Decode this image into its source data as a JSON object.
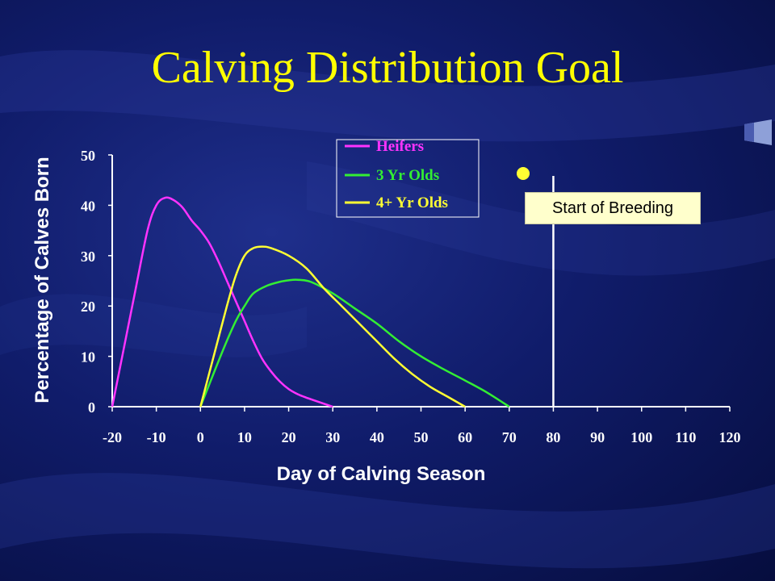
{
  "slide": {
    "title": "Calving Distribution Goal"
  },
  "chart_data": {
    "type": "line",
    "xlabel": "Day of Calving Season",
    "ylabel": "Percentage of Calves Born",
    "xlim": [
      -20,
      120
    ],
    "ylim": [
      0,
      50
    ],
    "x_ticks": [
      "-20",
      "-10",
      "0",
      "10",
      "20",
      "30",
      "40",
      "50",
      "60",
      "70",
      "80",
      "90",
      "100",
      "110",
      "120"
    ],
    "y_ticks": [
      "0",
      "10",
      "20",
      "30",
      "40",
      "50"
    ],
    "grid": false,
    "legend_position": "top-center",
    "series": [
      {
        "name": "Heifers",
        "color": "#ff33ff",
        "x": [
          -20,
          -15,
          -12,
          -10,
          -8,
          -6,
          -4,
          -2,
          0,
          2,
          4,
          6,
          8,
          10,
          12,
          14,
          16,
          18,
          20,
          22,
          24,
          26,
          28,
          30
        ],
        "y": [
          0,
          22,
          35,
          40,
          41.5,
          41,
          39.5,
          37,
          35,
          32.5,
          29,
          25,
          21,
          17,
          13,
          9.5,
          7,
          5,
          3.5,
          2.5,
          1.8,
          1.2,
          0.6,
          0
        ]
      },
      {
        "name": "3 Yr Olds",
        "color": "#33ee33",
        "x": [
          0,
          5,
          8,
          10,
          12,
          15,
          18,
          20,
          22,
          25,
          30,
          35,
          40,
          45,
          50,
          55,
          60,
          65,
          70
        ],
        "y": [
          0,
          11,
          17,
          20,
          22.5,
          24,
          24.8,
          25.1,
          25.2,
          24.8,
          22.5,
          19.5,
          16.5,
          13,
          10,
          7.5,
          5.2,
          2.8,
          0
        ]
      },
      {
        "name": "4+ Yr Olds",
        "color": "#ffff33",
        "x": [
          0,
          3,
          6,
          8,
          10,
          12,
          14,
          16,
          20,
          24,
          28,
          32,
          36,
          40,
          44,
          48,
          52,
          56,
          60
        ],
        "y": [
          0,
          10,
          20,
          26,
          30,
          31.5,
          31.8,
          31.5,
          30,
          27.5,
          23.5,
          20,
          16.5,
          13,
          9.5,
          6.5,
          4,
          2,
          0
        ]
      }
    ],
    "annotations": [
      {
        "text": "Start of Breeding",
        "x": 80,
        "color": "#ffffcc"
      }
    ]
  }
}
